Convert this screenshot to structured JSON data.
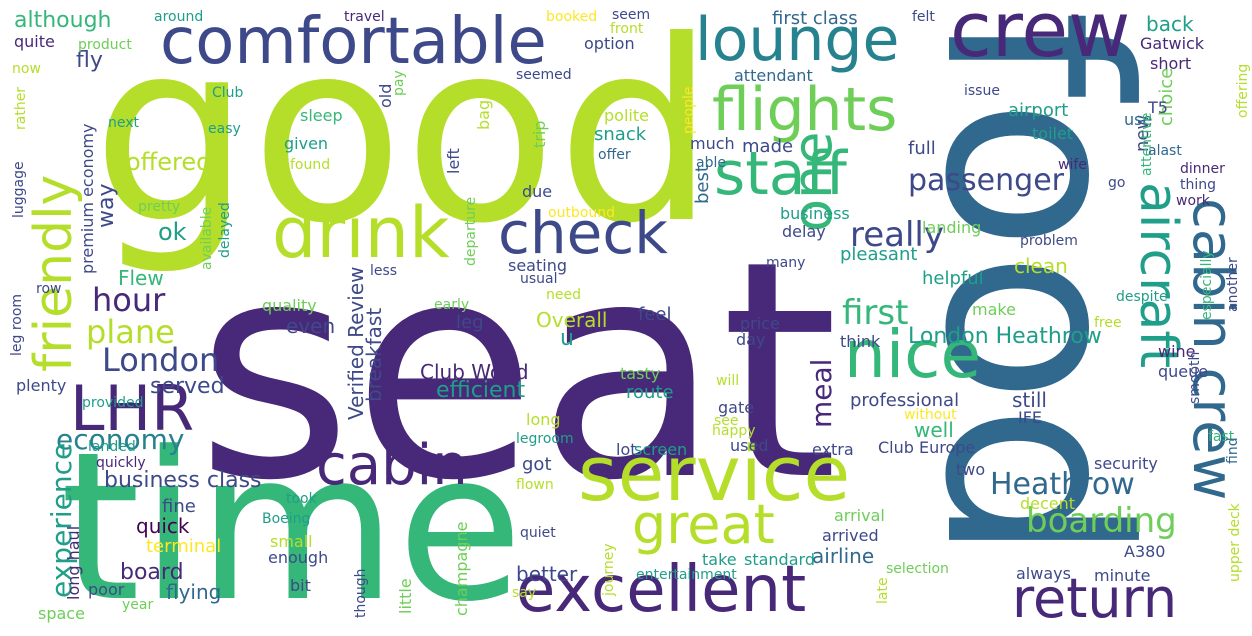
{
  "palette": {
    "lime": "#b5de2b",
    "green": "#6ece58",
    "mint": "#35b779",
    "teal": "#1f9e89",
    "cyan": "#26828e",
    "steel": "#31688e",
    "indigo": "#3e4989",
    "purple": "#482878",
    "deep": "#440154",
    "yellow": "#fde725"
  },
  "words": [
    {
      "text": "seat",
      "color": "purple"
    },
    {
      "text": "good",
      "color": "lime"
    },
    {
      "text": "food",
      "color": "steel"
    },
    {
      "text": "time",
      "color": "mint"
    },
    {
      "text": "comfortable",
      "color": "indigo"
    },
    {
      "text": "crew",
      "color": "purple"
    },
    {
      "text": "lounge",
      "color": "cyan"
    },
    {
      "text": "flights",
      "color": "green"
    },
    {
      "text": "staff",
      "color": "mint"
    },
    {
      "text": "drink",
      "color": "lime"
    },
    {
      "text": "check",
      "color": "indigo"
    },
    {
      "text": "one",
      "color": "mint"
    },
    {
      "text": "friendly",
      "color": "lime"
    },
    {
      "text": "nice",
      "color": "mint"
    },
    {
      "text": "aircraft",
      "color": "teal"
    },
    {
      "text": "cabin crew",
      "color": "steel"
    },
    {
      "text": "LHR",
      "color": "purple"
    },
    {
      "text": "cabin",
      "color": "purple"
    },
    {
      "text": "service",
      "color": "lime"
    },
    {
      "text": "excellent",
      "color": "purple"
    },
    {
      "text": "great",
      "color": "lime"
    },
    {
      "text": "return",
      "color": "purple"
    },
    {
      "text": "boarding",
      "color": "green"
    },
    {
      "text": "Heathrow",
      "color": "steel"
    },
    {
      "text": "passenger",
      "color": "indigo"
    },
    {
      "text": "hour",
      "color": "purple"
    },
    {
      "text": "plane",
      "color": "lime"
    },
    {
      "text": "London",
      "color": "indigo"
    },
    {
      "text": "economy",
      "color": "cyan"
    },
    {
      "text": "experience",
      "color": "teal"
    },
    {
      "text": "really",
      "color": "indigo"
    },
    {
      "text": "first",
      "color": "mint"
    },
    {
      "text": "London Heathrow",
      "color": "teal"
    },
    {
      "text": "meal",
      "color": "purple"
    },
    {
      "text": "although",
      "color": "mint"
    },
    {
      "text": "quite",
      "color": "purple"
    },
    {
      "text": "fly",
      "color": "indigo"
    },
    {
      "text": "offered",
      "color": "lime"
    },
    {
      "text": "ok",
      "color": "teal"
    },
    {
      "text": "way",
      "color": "indigo"
    },
    {
      "text": "Flew",
      "color": "mint"
    },
    {
      "text": "served",
      "color": "indigo"
    },
    {
      "text": "business class",
      "color": "indigo"
    },
    {
      "text": "board",
      "color": "purple"
    },
    {
      "text": "flying",
      "color": "steel"
    },
    {
      "text": "quick",
      "color": "deep"
    },
    {
      "text": "fine",
      "color": "indigo"
    },
    {
      "text": "terminal",
      "color": "yellow"
    },
    {
      "text": "long haul",
      "color": "purple"
    },
    {
      "text": "poor",
      "color": "indigo"
    },
    {
      "text": "year",
      "color": "green"
    },
    {
      "text": "space",
      "color": "green"
    },
    {
      "text": "even",
      "color": "indigo"
    },
    {
      "text": "Verified Review",
      "color": "indigo"
    },
    {
      "text": "breakfast",
      "color": "indigo"
    },
    {
      "text": "Club World",
      "color": "purple"
    },
    {
      "text": "efficient",
      "color": "teal"
    },
    {
      "text": "got",
      "color": "indigo"
    },
    {
      "text": "better",
      "color": "indigo"
    },
    {
      "text": "airline",
      "color": "steel"
    },
    {
      "text": "made",
      "color": "indigo"
    },
    {
      "text": "full",
      "color": "indigo"
    },
    {
      "text": "new",
      "color": "indigo"
    },
    {
      "text": "choice",
      "color": "green"
    },
    {
      "text": "back",
      "color": "teal"
    },
    {
      "text": "Gatwick",
      "color": "purple"
    },
    {
      "text": "short",
      "color": "purple"
    },
    {
      "text": "first class",
      "color": "steel"
    },
    {
      "text": "attendant",
      "color": "steel"
    },
    {
      "text": "option",
      "color": "indigo"
    },
    {
      "text": "seemed",
      "color": "indigo"
    },
    {
      "text": "product",
      "color": "green"
    },
    {
      "text": "around",
      "color": "teal"
    },
    {
      "text": "travel",
      "color": "purple"
    },
    {
      "text": "booked",
      "color": "yellow"
    },
    {
      "text": "seem",
      "color": "indigo"
    },
    {
      "text": "front",
      "color": "lime"
    },
    {
      "text": "felt",
      "color": "indigo"
    },
    {
      "text": "now",
      "color": "lime"
    },
    {
      "text": "people",
      "color": "yellow"
    },
    {
      "text": "polite",
      "color": "lime"
    },
    {
      "text": "snack",
      "color": "teal"
    },
    {
      "text": "offer",
      "color": "steel"
    },
    {
      "text": "trip",
      "color": "green"
    },
    {
      "text": "bag",
      "color": "lime"
    },
    {
      "text": "old",
      "color": "indigo"
    },
    {
      "text": "pay",
      "color": "green"
    },
    {
      "text": "sleep",
      "color": "mint"
    },
    {
      "text": "given",
      "color": "teal"
    },
    {
      "text": "found",
      "color": "lime"
    },
    {
      "text": "easy",
      "color": "teal"
    },
    {
      "text": "Club",
      "color": "teal"
    },
    {
      "text": "next",
      "color": "teal"
    },
    {
      "text": "premium economy",
      "color": "indigo"
    },
    {
      "text": "rather",
      "color": "lime"
    },
    {
      "text": "luggage",
      "color": "indigo"
    },
    {
      "text": "pretty",
      "color": "green"
    },
    {
      "text": "available",
      "color": "green"
    },
    {
      "text": "delayed",
      "color": "teal"
    },
    {
      "text": "left",
      "color": "indigo"
    },
    {
      "text": "departure",
      "color": "green"
    },
    {
      "text": "due",
      "color": "indigo"
    },
    {
      "text": "outbound",
      "color": "yellow"
    },
    {
      "text": "much",
      "color": "indigo"
    },
    {
      "text": "able",
      "color": "steel"
    },
    {
      "text": "best",
      "color": "steel"
    },
    {
      "text": "business",
      "color": "teal"
    },
    {
      "text": "delay",
      "color": "indigo"
    },
    {
      "text": "landing",
      "color": "green"
    },
    {
      "text": "pleasant",
      "color": "teal"
    },
    {
      "text": "helpful",
      "color": "teal"
    },
    {
      "text": "clean",
      "color": "lime"
    },
    {
      "text": "make",
      "color": "green"
    },
    {
      "text": "airport",
      "color": "teal"
    },
    {
      "text": "toilet",
      "color": "teal"
    },
    {
      "text": "use",
      "color": "steel"
    },
    {
      "text": "T5",
      "color": "indigo"
    },
    {
      "text": "issue",
      "color": "indigo"
    },
    {
      "text": "attentive",
      "color": "mint"
    },
    {
      "text": "alast",
      "color": "steel"
    },
    {
      "text": "dinner",
      "color": "purple"
    },
    {
      "text": "go",
      "color": "indigo"
    },
    {
      "text": "thing",
      "color": "indigo"
    },
    {
      "text": "work",
      "color": "purple"
    },
    {
      "text": "wife",
      "color": "purple"
    },
    {
      "text": "offering",
      "color": "lime"
    },
    {
      "text": "another",
      "color": "indigo"
    },
    {
      "text": "especially",
      "color": "mint"
    },
    {
      "text": "despite",
      "color": "teal"
    },
    {
      "text": "problem",
      "color": "indigo"
    },
    {
      "text": "free",
      "color": "lime"
    },
    {
      "text": "wine",
      "color": "purple"
    },
    {
      "text": "queue",
      "color": "indigo"
    },
    {
      "text": "smooth",
      "color": "indigo"
    },
    {
      "text": "fast",
      "color": "mint"
    },
    {
      "text": "find",
      "color": "steel"
    },
    {
      "text": "upper deck",
      "color": "lime"
    },
    {
      "text": "many",
      "color": "indigo"
    },
    {
      "text": "less",
      "color": "indigo"
    },
    {
      "text": "seating",
      "color": "indigo"
    },
    {
      "text": "usual",
      "color": "indigo"
    },
    {
      "text": "need",
      "color": "lime"
    },
    {
      "text": "quality",
      "color": "green"
    },
    {
      "text": "early",
      "color": "green"
    },
    {
      "text": "leg",
      "color": "indigo"
    },
    {
      "text": "Overall",
      "color": "lime"
    },
    {
      "text": "u",
      "color": "teal"
    },
    {
      "text": "feel",
      "color": "indigo"
    },
    {
      "text": "price",
      "color": "indigo"
    },
    {
      "text": "day",
      "color": "indigo"
    },
    {
      "text": "think",
      "color": "indigo"
    },
    {
      "text": "will",
      "color": "lime"
    },
    {
      "text": "tasty",
      "color": "green"
    },
    {
      "text": "route",
      "color": "teal"
    },
    {
      "text": "still",
      "color": "indigo"
    },
    {
      "text": "professional",
      "color": "indigo"
    },
    {
      "text": "without",
      "color": "yellow"
    },
    {
      "text": "IFE",
      "color": "indigo"
    },
    {
      "text": "gate",
      "color": "indigo"
    },
    {
      "text": "well",
      "color": "mint"
    },
    {
      "text": "see",
      "color": "lime"
    },
    {
      "text": "happy",
      "color": "lime"
    },
    {
      "text": "long",
      "color": "lime"
    },
    {
      "text": "legroom",
      "color": "teal"
    },
    {
      "text": "lot",
      "color": "indigo"
    },
    {
      "text": "screen",
      "color": "teal"
    },
    {
      "text": "used",
      "color": "indigo"
    },
    {
      "text": "extra",
      "color": "indigo"
    },
    {
      "text": "Club Europe",
      "color": "indigo"
    },
    {
      "text": "two",
      "color": "indigo"
    },
    {
      "text": "security",
      "color": "indigo"
    },
    {
      "text": "decent",
      "color": "lime"
    },
    {
      "text": "arrival",
      "color": "green"
    },
    {
      "text": "arrived",
      "color": "indigo"
    },
    {
      "text": "take",
      "color": "teal"
    },
    {
      "text": "standard",
      "color": "teal"
    },
    {
      "text": "selection",
      "color": "green"
    },
    {
      "text": "entertainment",
      "color": "teal"
    },
    {
      "text": "always",
      "color": "indigo"
    },
    {
      "text": "minute",
      "color": "indigo"
    },
    {
      "text": "A380",
      "color": "indigo"
    },
    {
      "text": "late",
      "color": "lime"
    },
    {
      "text": "quiet",
      "color": "indigo"
    },
    {
      "text": "journey",
      "color": "lime"
    },
    {
      "text": "champagne",
      "color": "green"
    },
    {
      "text": "little",
      "color": "green"
    },
    {
      "text": "though",
      "color": "indigo"
    },
    {
      "text": "say",
      "color": "lime"
    },
    {
      "text": "small",
      "color": "lime"
    },
    {
      "text": "enough",
      "color": "indigo"
    },
    {
      "text": "bit",
      "color": "indigo"
    },
    {
      "text": "took",
      "color": "teal"
    },
    {
      "text": "Boeing",
      "color": "teal"
    },
    {
      "text": "flown",
      "color": "lime"
    },
    {
      "text": "landed",
      "color": "teal"
    },
    {
      "text": "quickly",
      "color": "purple"
    },
    {
      "text": "provided",
      "color": "teal"
    },
    {
      "text": "plenty",
      "color": "indigo"
    },
    {
      "text": "leg room",
      "color": "indigo"
    },
    {
      "text": "row",
      "color": "indigo"
    }
  ]
}
